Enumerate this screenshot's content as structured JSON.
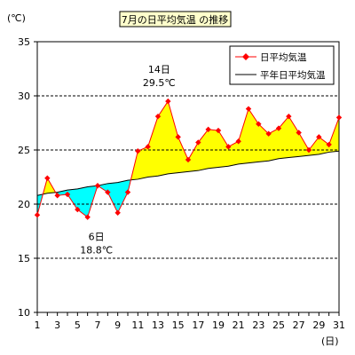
{
  "chart_data": {
    "type": "line",
    "title": "7月の日平均気温 の推移",
    "ylabel": "(℃)",
    "xlabel": "(日)",
    "ylim": [
      10,
      35
    ],
    "yticks": [
      10,
      15,
      20,
      25,
      30,
      35
    ],
    "grid": "horizontal dashed",
    "legend_position": "top-right",
    "x": [
      1,
      2,
      3,
      4,
      5,
      6,
      7,
      8,
      9,
      10,
      11,
      12,
      13,
      14,
      15,
      16,
      17,
      18,
      19,
      20,
      21,
      22,
      23,
      24,
      25,
      26,
      27,
      28,
      29,
      30,
      31
    ],
    "xticks": [
      1,
      3,
      5,
      7,
      9,
      11,
      13,
      15,
      17,
      19,
      21,
      23,
      25,
      27,
      29,
      31
    ],
    "series": [
      {
        "name": "日平均気温",
        "color": "#ff0000",
        "marker": "diamond",
        "values": [
          19.0,
          22.4,
          20.8,
          20.9,
          19.5,
          18.8,
          21.7,
          21.1,
          19.2,
          21.1,
          24.9,
          25.3,
          28.1,
          29.5,
          26.2,
          24.1,
          25.7,
          26.9,
          26.8,
          25.3,
          25.8,
          28.8,
          27.4,
          26.5,
          27.0,
          28.1,
          26.6,
          25.0,
          26.2,
          25.5,
          28.0
        ]
      },
      {
        "name": "平年日平均気温",
        "color": "#000000",
        "values": [
          20.8,
          21.0,
          21.1,
          21.3,
          21.4,
          21.6,
          21.7,
          21.9,
          22.0,
          22.2,
          22.3,
          22.5,
          22.6,
          22.8,
          22.9,
          23.0,
          23.1,
          23.3,
          23.4,
          23.5,
          23.7,
          23.8,
          23.9,
          24.0,
          24.2,
          24.3,
          24.4,
          24.5,
          24.6,
          24.8,
          24.9
        ]
      }
    ],
    "fill_above_color": "#ffff00",
    "fill_below_color": "#00ffff",
    "annotations": [
      {
        "day": 14,
        "line1": "14日",
        "line2": "29.5℃"
      },
      {
        "day": 6,
        "line1": "6日",
        "line2": "18.8℃"
      }
    ]
  }
}
